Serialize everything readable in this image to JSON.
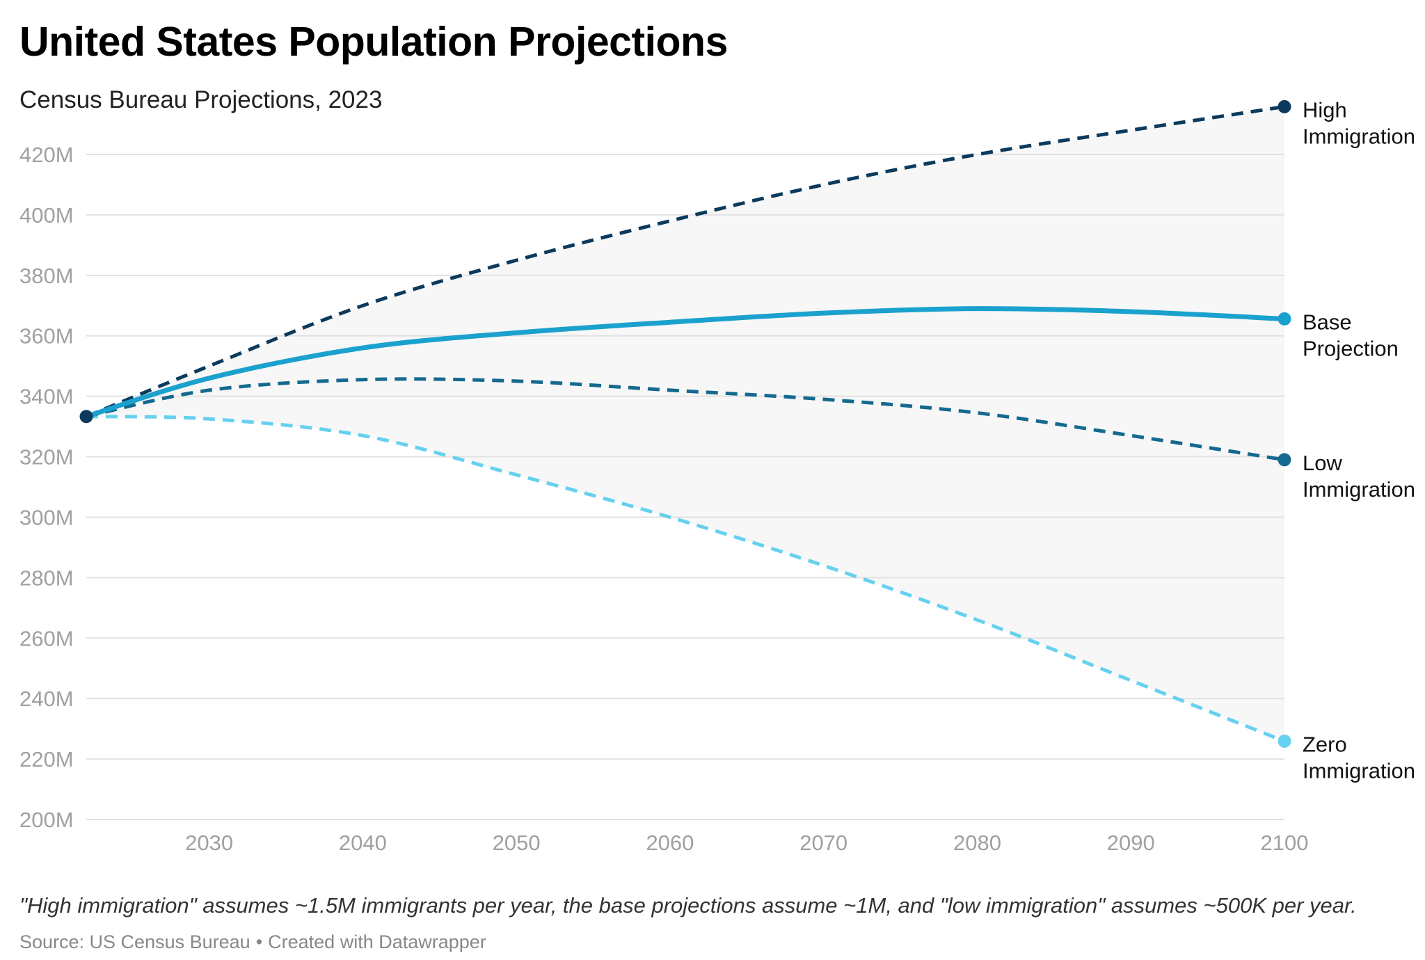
{
  "title": "United States Population Projections",
  "subtitle": "Census Bureau Projections, 2023",
  "note": "\"High immigration\" assumes ~1.5M immigrants per year, the base projections assume ~1M, and \"low immigration\" assumes ~500K per year.",
  "source": {
    "text": "Source: US Census Bureau",
    "separator": "•",
    "credit": "Created with Datawrapper"
  },
  "chart_data": {
    "type": "line",
    "title": "United States Population Projections",
    "subtitle": "Census Bureau Projections, 2023",
    "xlabel": "",
    "ylabel": "",
    "xlim": [
      2022,
      2100
    ],
    "ylim": [
      200,
      430
    ],
    "x_ticks": [
      2030,
      2040,
      2050,
      2060,
      2070,
      2080,
      2090,
      2100
    ],
    "y_ticks": [
      200,
      220,
      240,
      260,
      280,
      300,
      320,
      340,
      360,
      380,
      400,
      420
    ],
    "y_tick_labels": [
      "200M",
      "220M",
      "240M",
      "260M",
      "280M",
      "300M",
      "320M",
      "340M",
      "360M",
      "380M",
      "400M",
      "420M"
    ],
    "grid": "horizontal",
    "shaded_range": "between High Immigration and Zero Immigration",
    "series": [
      {
        "name": "High Immigration",
        "label_lines": [
          "High",
          "Immigration"
        ],
        "style": "dashed",
        "color": "#0b3a5c",
        "x": [
          2022,
          2030,
          2040,
          2050,
          2060,
          2070,
          2080,
          2090,
          2100
        ],
        "y": [
          333.3,
          350,
          370,
          385,
          398,
          410,
          420,
          428,
          435.8
        ]
      },
      {
        "name": "Base Projection",
        "label_lines": [
          "Base",
          "Projection"
        ],
        "style": "solid",
        "color": "#1ba1cd",
        "x": [
          2022,
          2030,
          2040,
          2050,
          2060,
          2070,
          2080,
          2090,
          2100
        ],
        "y": [
          333.3,
          346,
          356,
          361,
          364.5,
          367.5,
          369,
          368,
          365.6
        ]
      },
      {
        "name": "Low Immigration",
        "label_lines": [
          "Low",
          "Immigration"
        ],
        "style": "dashed",
        "color": "#15698f",
        "x": [
          2022,
          2030,
          2040,
          2050,
          2060,
          2070,
          2080,
          2090,
          2100
        ],
        "y": [
          333.3,
          342,
          345.5,
          345,
          342,
          339,
          334.5,
          327,
          319
        ]
      },
      {
        "name": "Zero Immigration",
        "label_lines": [
          "Zero",
          "Immigration"
        ],
        "style": "dashed",
        "color": "#66d1ef",
        "x": [
          2022,
          2030,
          2040,
          2050,
          2060,
          2070,
          2080,
          2090,
          2100
        ],
        "y": [
          333.3,
          332.5,
          327,
          314,
          300,
          284,
          266,
          246,
          225.9
        ]
      }
    ],
    "colors": {
      "shaded_band": "#f7f7f7",
      "grid": "#e2e2e2",
      "tick_text": "#a0a0a0",
      "start_dot": "#0b3a5c"
    }
  }
}
